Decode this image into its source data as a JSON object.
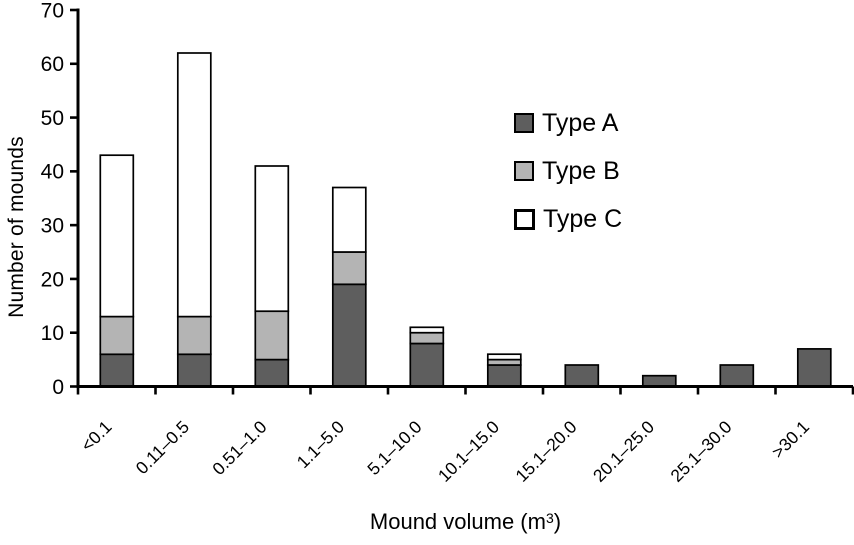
{
  "chart_data": {
    "type": "bar",
    "stacked": true,
    "title": "",
    "categories": [
      "<0.1",
      "0.11–0.5",
      "0.51–1.0",
      "1.1–5.0",
      "5.1–10.0",
      "10.1–15.0",
      "15.1–20.0",
      "20.1–25.0",
      "25.1–30.0",
      ">30.1"
    ],
    "series": [
      {
        "name": "Type A",
        "color": "#5e5e5e",
        "values": [
          6,
          6,
          5,
          19,
          8,
          4,
          4,
          2,
          4,
          7
        ]
      },
      {
        "name": "Type B",
        "color": "#b4b4b4",
        "values": [
          7,
          7,
          9,
          6,
          2,
          1,
          0,
          0,
          0,
          0
        ]
      },
      {
        "name": "Type C",
        "color": "#ffffff",
        "values": [
          30,
          49,
          27,
          12,
          1,
          1,
          0,
          0,
          0,
          0
        ]
      }
    ],
    "totals": [
      43,
      62,
      41,
      37,
      11,
      6,
      4,
      2,
      4,
      7
    ],
    "ylabel": "Number of mounds",
    "xlabel": "Mound volume (m³)",
    "xlabel_parts": {
      "pre": "Mound volume (m",
      "sup": "3",
      "post": ")"
    },
    "ylim": [
      0,
      70
    ],
    "yticks": [
      0,
      10,
      20,
      30,
      40,
      50,
      60,
      70
    ],
    "grid": false,
    "legend_position": "inside-upper-right",
    "axis_color": "#000000",
    "background_color": "#ffffff"
  }
}
